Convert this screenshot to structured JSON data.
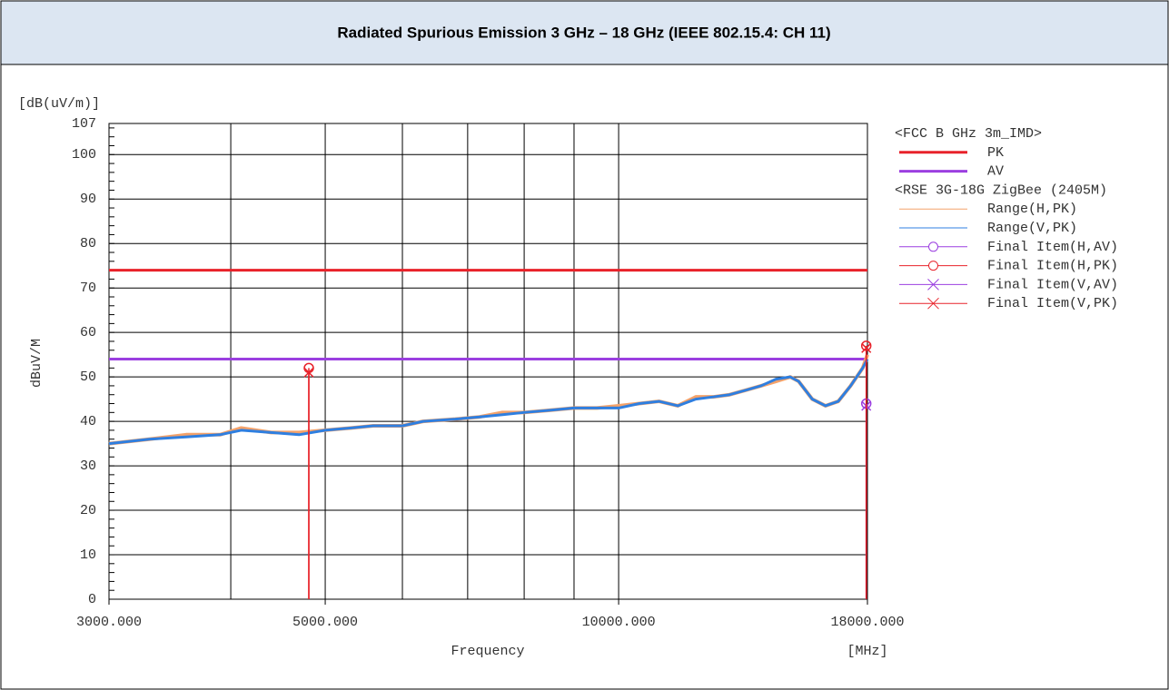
{
  "chart_data": {
    "type": "line",
    "title": "Radiated Spurious Emission 3 GHz – 18 GHz (IEEE 802.15.4: CH 11)",
    "y_unit_label": "[dB(uV/m)]",
    "y_label": "dBuV/M",
    "x_label": "Frequency",
    "x_unit_label": "[MHz]",
    "log_x": true,
    "grid": true,
    "xlim": [
      3000,
      18000
    ],
    "ylim": [
      0,
      107
    ],
    "xticks": [
      {
        "value": 3000,
        "label": "3000.000"
      },
      {
        "value": 5000,
        "label": "5000.000"
      },
      {
        "value": 10000,
        "label": "10000.000"
      },
      {
        "value": 18000,
        "label": "18000.000"
      }
    ],
    "xgrid": [
      4000,
      5000,
      6000,
      7000,
      8000,
      9000,
      10000
    ],
    "yticks": [
      0,
      10,
      20,
      30,
      40,
      50,
      60,
      70,
      80,
      90,
      100,
      107
    ],
    "legend_groups": [
      "<FCC B GHz 3m_IMD>",
      "<RSE 3G-18G ZigBee (2405M)"
    ],
    "limits": [
      {
        "name": "PK",
        "color": "#e8222a",
        "value": 74
      },
      {
        "name": "AV",
        "color": "#9b3fe0",
        "value": 54
      }
    ],
    "x": [
      3000,
      3300,
      3600,
      3900,
      4100,
      4400,
      4700,
      5000,
      5300,
      5600,
      6000,
      6300,
      6800,
      7200,
      7600,
      8000,
      8500,
      9000,
      9500,
      10000,
      10500,
      11000,
      11500,
      12000,
      12500,
      13000,
      13500,
      14000,
      14500,
      15000,
      15300,
      15800,
      16300,
      16800,
      17300,
      17800,
      18000
    ],
    "series": [
      {
        "name": "Range(H,PK)",
        "color": "#f4a26a",
        "values": [
          35,
          36,
          37,
          37,
          38.5,
          37.5,
          37.5,
          38,
          38.5,
          39,
          39,
          40,
          40.5,
          41,
          42,
          42,
          42.5,
          43,
          43,
          43.5,
          44,
          44.5,
          43.5,
          45.5,
          45.5,
          46,
          47,
          48,
          49,
          50,
          49,
          45,
          43.5,
          44.5,
          48,
          52,
          55
        ]
      },
      {
        "name": "Range(V,PK)",
        "color": "#2f7fe0",
        "values": [
          35,
          36,
          36.5,
          37,
          38,
          37.5,
          37,
          38,
          38.5,
          39,
          39,
          40,
          40.5,
          41,
          41.5,
          42,
          42.5,
          43,
          43,
          43,
          44,
          44.5,
          43.5,
          45,
          45.5,
          46,
          47,
          48,
          49.5,
          50,
          49,
          45,
          43.5,
          44.5,
          48,
          52,
          54
        ]
      }
    ],
    "finals": [
      {
        "name": "Final Item(H,AV)",
        "color": "#9b3fe0",
        "marker": "circle",
        "x": [
          17950
        ],
        "values": [
          44
        ]
      },
      {
        "name": "Final Item(H,PK)",
        "color": "#e8222a",
        "marker": "circle",
        "x": [
          4810,
          17950
        ],
        "values": [
          52,
          57
        ]
      },
      {
        "name": "Final Item(V,AV)",
        "color": "#9b3fe0",
        "marker": "cross",
        "x": [
          17950
        ],
        "values": [
          43.5
        ]
      },
      {
        "name": "Final Item(V,PK)",
        "color": "#e8222a",
        "marker": "cross",
        "x": [
          4810,
          17950
        ],
        "values": [
          51,
          56.5
        ]
      }
    ]
  }
}
